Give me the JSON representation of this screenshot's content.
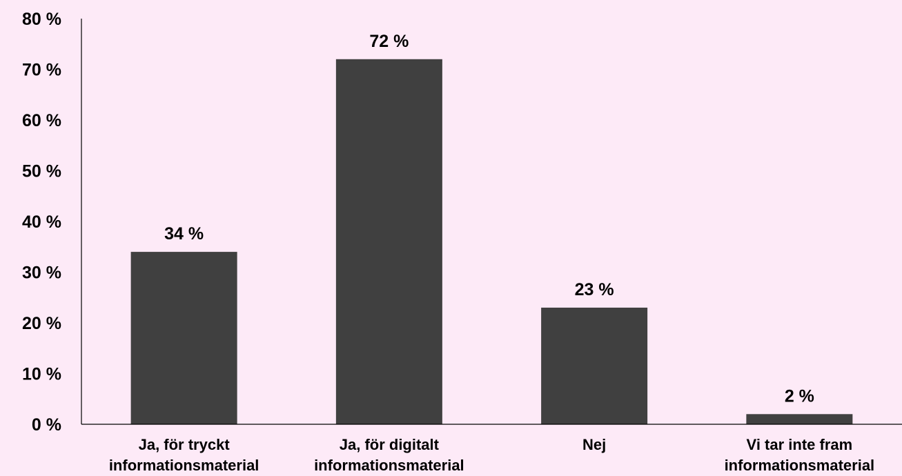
{
  "chart_data": {
    "type": "bar",
    "title": "",
    "xlabel": "",
    "ylabel": "",
    "categories": [
      [
        "Ja, för tryckt",
        "informationsmaterial"
      ],
      [
        "Ja, för digitalt",
        "informationsmaterial"
      ],
      [
        "Nej"
      ],
      [
        "Vi tar inte fram",
        "informationsmaterial"
      ]
    ],
    "values": [
      34,
      72,
      23,
      2
    ],
    "value_labels": [
      "34 %",
      "72 %",
      "23 %",
      "2 %"
    ],
    "ylim": [
      0,
      80
    ],
    "yticks": [
      0,
      10,
      20,
      30,
      40,
      50,
      60,
      70,
      80
    ],
    "ytick_labels": [
      "0 %",
      "10 %",
      "20 %",
      "30 %",
      "40 %",
      "50 %",
      "60 %",
      "70 %",
      "80 %"
    ],
    "grid": false,
    "legend": "none",
    "colors": {
      "bar": "#404040",
      "axis": "#000000",
      "background": "#fdeaf7"
    }
  }
}
